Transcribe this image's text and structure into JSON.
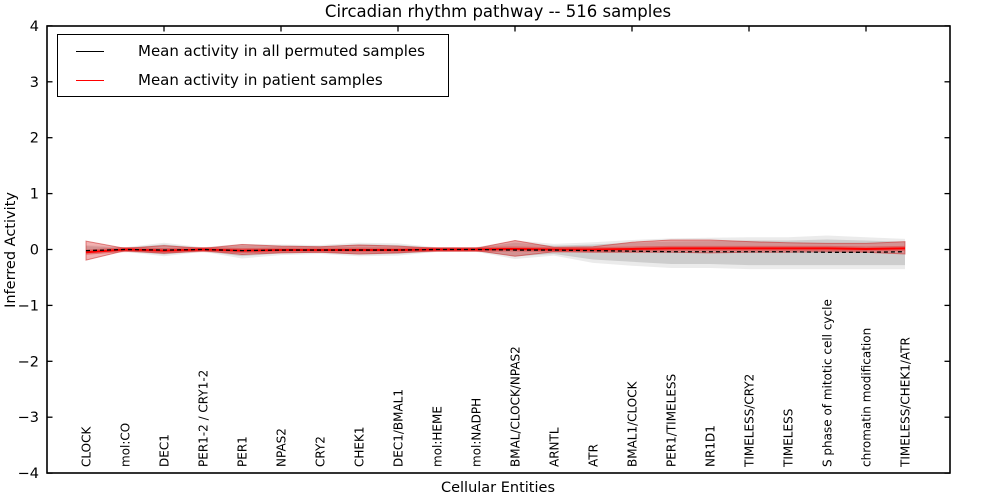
{
  "title": "Circadian rhythm pathway -- 516 samples",
  "axes": {
    "xlabel": "Cellular Entities",
    "ylabel": "Inferred Activity",
    "ylim": [
      -4,
      4
    ],
    "ytick_labels": [
      "4",
      "3",
      "2",
      "1",
      "0",
      "−1",
      "−2",
      "−3",
      "−4"
    ]
  },
  "legend": {
    "items": [
      {
        "label": "Mean activity in all permuted samples",
        "color": "#000000"
      },
      {
        "label": "Mean activity in patient samples",
        "color": "#ff0000"
      }
    ]
  },
  "chart_data": {
    "type": "line",
    "title": "Circadian rhythm pathway -- 516 samples",
    "xlabel": "Cellular Entities",
    "ylabel": "Inferred Activity",
    "ylim": [
      -4,
      4
    ],
    "grid": false,
    "legend_position": "upper left",
    "categories": [
      "CLOCK",
      "mol:CO",
      "DEC1",
      "PER1-2 / CRY1-2",
      "PER1",
      "NPAS2",
      "CRY2",
      "CHEK1",
      "DEC1/BMAL1",
      "mol:HEME",
      "mol:NADPH",
      "BMAL/CLOCK/NPAS2",
      "ARNTL",
      "ATR",
      "BMAL1/CLOCK",
      "PER1/TIMELESS",
      "NR1D1",
      "TIMELESS/CRY2",
      "TIMELESS",
      "S phase of mitotic cell cycle",
      "chromatin modification",
      "TIMELESS/CHEK1/ATR"
    ],
    "series": [
      {
        "name": "Mean activity in all permuted samples",
        "color": "#000000",
        "linestyle": "dashed",
        "values": [
          -0.02,
          0,
          -0.01,
          0,
          -0.02,
          -0.01,
          -0.01,
          -0.01,
          -0.01,
          0,
          0,
          -0.01,
          -0.01,
          -0.02,
          -0.03,
          -0.04,
          -0.04,
          -0.04,
          -0.04,
          -0.05,
          -0.05,
          -0.04
        ]
      },
      {
        "name": "Mean activity in patient samples",
        "color": "#ff0000",
        "linestyle": "solid",
        "values": [
          -0.05,
          0,
          -0.02,
          0,
          -0.02,
          -0.01,
          -0.01,
          -0.01,
          -0.01,
          0,
          0,
          0.01,
          0,
          0,
          0.01,
          0.02,
          0.02,
          0.02,
          0.02,
          0.02,
          0.01,
          0.02
        ]
      }
    ],
    "bands": [
      {
        "name": "permuted-range-outer",
        "fill": "rgba(190,190,190,0.30)",
        "edge": "none",
        "upper": [
          0.08,
          0.04,
          0.12,
          0.04,
          0.1,
          0.09,
          0.08,
          0.12,
          0.11,
          0.04,
          0.04,
          0.16,
          0.1,
          0.13,
          0.17,
          0.2,
          0.21,
          0.22,
          0.22,
          0.25,
          0.22,
          0.19
        ],
        "lower": [
          -0.08,
          -0.04,
          -0.12,
          -0.04,
          -0.16,
          -0.1,
          -0.08,
          -0.12,
          -0.11,
          -0.04,
          -0.04,
          -0.17,
          -0.11,
          -0.24,
          -0.29,
          -0.33,
          -0.33,
          -0.35,
          -0.35,
          -0.35,
          -0.35,
          -0.35
        ]
      },
      {
        "name": "permuted-range-inner",
        "fill": "rgba(150,150,150,0.35)",
        "edge": "none",
        "upper": [
          0.06,
          0.03,
          0.09,
          0.03,
          0.07,
          0.07,
          0.06,
          0.09,
          0.08,
          0.03,
          0.03,
          0.12,
          0.07,
          0.09,
          0.12,
          0.14,
          0.15,
          0.16,
          0.16,
          0.18,
          0.16,
          0.14
        ],
        "lower": [
          -0.06,
          -0.03,
          -0.09,
          -0.03,
          -0.12,
          -0.07,
          -0.06,
          -0.09,
          -0.08,
          -0.03,
          -0.03,
          -0.12,
          -0.08,
          -0.18,
          -0.22,
          -0.26,
          -0.26,
          -0.28,
          -0.28,
          -0.28,
          -0.28,
          -0.28
        ]
      },
      {
        "name": "patient-range",
        "fill": "rgba(222,60,60,0.40)",
        "edge": "rgba(200,40,40,0.55)",
        "upper": [
          0.15,
          0.02,
          0.07,
          0.02,
          0.09,
          0.06,
          0.05,
          0.08,
          0.06,
          0.02,
          0.02,
          0.16,
          0.04,
          0.05,
          0.13,
          0.17,
          0.17,
          0.14,
          0.12,
          0.11,
          0.11,
          0.14
        ],
        "lower": [
          -0.19,
          -0.02,
          -0.07,
          -0.02,
          -0.09,
          -0.06,
          -0.05,
          -0.08,
          -0.06,
          -0.02,
          -0.02,
          -0.12,
          -0.04,
          -0.05,
          -0.05,
          -0.05,
          -0.06,
          -0.05,
          -0.05,
          -0.04,
          -0.05,
          -0.08
        ]
      }
    ],
    "top_tick_indices": [
      2,
      5,
      8,
      11,
      14,
      17,
      20
    ]
  }
}
